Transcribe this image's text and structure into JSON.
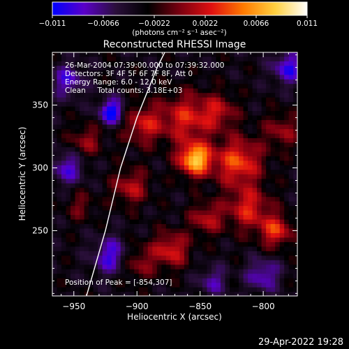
{
  "figure": {
    "title": "Reconstructed RHESSI Image",
    "colorbar_unit": "(photons cm⁻² s⁻¹ asec⁻²)",
    "footer_timestamp": "29-Apr-2022 19:28",
    "annotations": {
      "line1": "26-Mar-2004 07:39:00.000 to 07:39:32.000",
      "line2": "Detectors: 3F 4F 5F 6F 7F 8F, Att 0",
      "line3": "Energy Range: 6.0 - 12.0 keV",
      "line4": "Clean     Total counts: 3.18E+03",
      "peak": "Position of Peak = [-854,307]"
    }
  },
  "chart_data": {
    "type": "heatmap",
    "title": "Reconstructed RHESSI Image",
    "xlabel": "Heliocentric X (arcsec)",
    "ylabel": "Heliocentric Y (arcsec)",
    "xlim": [
      -967,
      -773
    ],
    "ylim": [
      198,
      392
    ],
    "x_ticks": [
      -950,
      -900,
      -850,
      -800
    ],
    "x_tick_labels": [
      "−950",
      "−900",
      "−850",
      "−800"
    ],
    "y_ticks": [
      250,
      300,
      350
    ],
    "y_tick_labels": [
      "250",
      "300",
      "350"
    ],
    "colorbar": {
      "range": [
        -0.011,
        0.011
      ],
      "ticks": [
        -0.011,
        -0.0066,
        -0.0022,
        0.0022,
        0.0066,
        0.011
      ],
      "tick_labels": [
        "−0.011",
        "−0.0066",
        "−0.0022",
        "0.0022",
        "0.0066",
        "0.011"
      ],
      "colormap": [
        "#0000ff",
        "#5a00c8",
        "#2a0f3a",
        "#000000",
        "#7a0010",
        "#e01010",
        "#ff7a00",
        "#ffd040",
        "#ffffff"
      ]
    },
    "peak_position": [
      -854,
      307
    ],
    "peak_value": 0.011,
    "limb_arc": [
      [
        -940,
        198
      ],
      [
        -925,
        250
      ],
      [
        -913,
        300
      ],
      [
        -900,
        340
      ],
      [
        -884,
        380
      ],
      [
        -878,
        392
      ]
    ],
    "sources": [
      {
        "x": -854,
        "y": 307,
        "amplitude": 0.0115,
        "sigma": 9
      },
      {
        "x": -861,
        "y": 340,
        "amplitude": 0.006,
        "sigma": 14
      },
      {
        "x": -895,
        "y": 335,
        "amplitude": 0.0055,
        "sigma": 11
      },
      {
        "x": -905,
        "y": 285,
        "amplitude": 0.005,
        "sigma": 10
      },
      {
        "x": -820,
        "y": 305,
        "amplitude": 0.0075,
        "sigma": 13
      },
      {
        "x": -812,
        "y": 268,
        "amplitude": 0.006,
        "sigma": 12
      },
      {
        "x": -790,
        "y": 250,
        "amplitude": 0.0065,
        "sigma": 9
      },
      {
        "x": -873,
        "y": 235,
        "amplitude": 0.006,
        "sigma": 10
      },
      {
        "x": -845,
        "y": 260,
        "amplitude": 0.005,
        "sigma": 9
      },
      {
        "x": -900,
        "y": 225,
        "amplitude": 0.004,
        "sigma": 10
      },
      {
        "x": -940,
        "y": 322,
        "amplitude": 0.004,
        "sigma": 9
      },
      {
        "x": -945,
        "y": 270,
        "amplitude": 0.003,
        "sigma": 8
      },
      {
        "x": -785,
        "y": 330,
        "amplitude": 0.004,
        "sigma": 10
      },
      {
        "x": -835,
        "y": 345,
        "amplitude": 0.0045,
        "sigma": 10
      },
      {
        "x": -920,
        "y": 345,
        "amplitude": -0.008,
        "sigma": 7
      },
      {
        "x": -955,
        "y": 300,
        "amplitude": -0.005,
        "sigma": 9
      },
      {
        "x": -920,
        "y": 230,
        "amplitude": -0.006,
        "sigma": 10
      },
      {
        "x": -800,
        "y": 215,
        "amplitude": -0.005,
        "sigma": 9
      },
      {
        "x": -780,
        "y": 380,
        "amplitude": -0.006,
        "sigma": 9
      },
      {
        "x": -955,
        "y": 370,
        "amplitude": -0.005,
        "sigma": 9
      },
      {
        "x": -840,
        "y": 210,
        "amplitude": -0.004,
        "sigma": 8
      }
    ]
  }
}
